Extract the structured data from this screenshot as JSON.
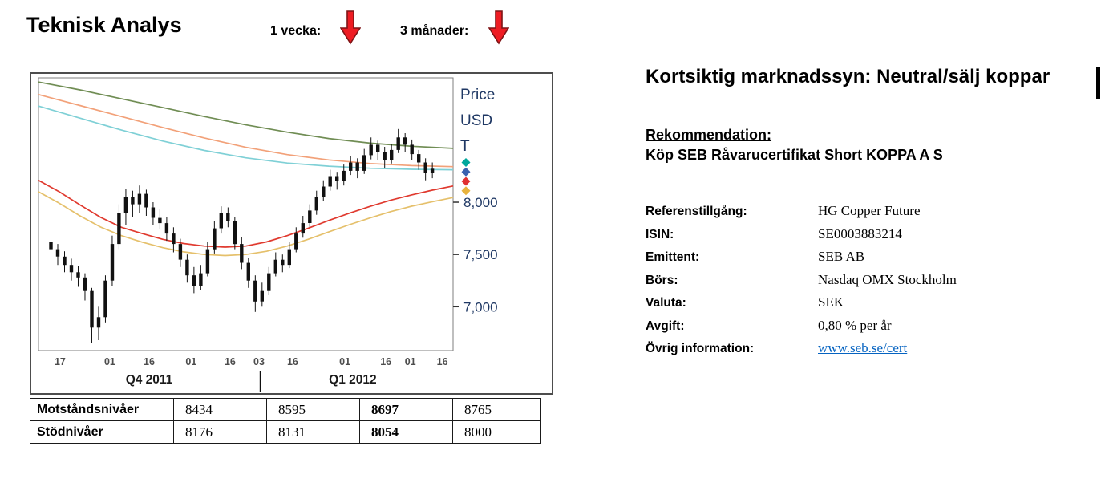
{
  "header": {
    "title": "Teknisk Analys",
    "week_label": "1 vecka:",
    "months_label": "3 månader:",
    "week_trend": "down",
    "months_trend": "down",
    "arrow_color": "#ee1c23",
    "arrow_outline": "#7f1416"
  },
  "chart_data": {
    "type": "candlestick",
    "title": "",
    "price_axis_label_lines": [
      "Price",
      "USD",
      "T"
    ],
    "y_range": [
      6580,
      9190
    ],
    "y_ticks": [
      {
        "label": "8,000",
        "value": 8000
      },
      {
        "label": "7,500",
        "value": 7500
      },
      {
        "label": "7,000",
        "value": 7000
      }
    ],
    "x_ticks": [
      {
        "label": "17",
        "pos": 5.2
      },
      {
        "label": "01",
        "pos": 17.2
      },
      {
        "label": "16",
        "pos": 26.7
      },
      {
        "label": "01",
        "pos": 36.8
      },
      {
        "label": "16",
        "pos": 46.2
      },
      {
        "label": "03",
        "pos": 53.2
      },
      {
        "label": "16",
        "pos": 61.3
      },
      {
        "label": "01",
        "pos": 73.9
      },
      {
        "label": "16",
        "pos": 83.8
      },
      {
        "label": "01",
        "pos": 89.7
      },
      {
        "label": "16",
        "pos": 97.4
      }
    ],
    "period_labels": [
      {
        "label": "Q4 2011",
        "pos": 26.7
      },
      {
        "label": "Q1 2012",
        "pos": 75.8
      }
    ],
    "divider_pos": 53.5,
    "candle_color": "#111111",
    "candles": [
      [
        7620,
        7680,
        7480,
        7550
      ],
      [
        7550,
        7600,
        7400,
        7480
      ],
      [
        7480,
        7530,
        7330,
        7400
      ],
      [
        7400,
        7460,
        7250,
        7330
      ],
      [
        7330,
        7390,
        7190,
        7280
      ],
      [
        7280,
        7320,
        7060,
        7150
      ],
      [
        7150,
        7180,
        6650,
        6800
      ],
      [
        6800,
        7000,
        6680,
        6900
      ],
      [
        6900,
        7300,
        6850,
        7250
      ],
      [
        7250,
        7680,
        7200,
        7600
      ],
      [
        7600,
        7980,
        7550,
        7900
      ],
      [
        7900,
        8130,
        7780,
        8050
      ],
      [
        8050,
        8110,
        7860,
        7980
      ],
      [
        7980,
        8160,
        7900,
        8080
      ],
      [
        8080,
        8120,
        7870,
        7950
      ],
      [
        7950,
        8000,
        7780,
        7850
      ],
      [
        7850,
        7930,
        7740,
        7800
      ],
      [
        7800,
        7860,
        7630,
        7700
      ],
      [
        7700,
        7760,
        7520,
        7600
      ],
      [
        7600,
        7650,
        7380,
        7450
      ],
      [
        7450,
        7500,
        7230,
        7300
      ],
      [
        7300,
        7380,
        7130,
        7200
      ],
      [
        7200,
        7400,
        7160,
        7320
      ],
      [
        7320,
        7620,
        7290,
        7550
      ],
      [
        7550,
        7820,
        7510,
        7750
      ],
      [
        7750,
        7960,
        7700,
        7900
      ],
      [
        7900,
        7950,
        7760,
        7820
      ],
      [
        7820,
        7860,
        7550,
        7600
      ],
      [
        7600,
        7670,
        7360,
        7420
      ],
      [
        7420,
        7470,
        7180,
        7250
      ],
      [
        7250,
        7300,
        6950,
        7050
      ],
      [
        7050,
        7230,
        7000,
        7150
      ],
      [
        7150,
        7380,
        7110,
        7320
      ],
      [
        7320,
        7520,
        7290,
        7450
      ],
      [
        7450,
        7500,
        7330,
        7400
      ],
      [
        7400,
        7620,
        7370,
        7550
      ],
      [
        7550,
        7760,
        7520,
        7700
      ],
      [
        7700,
        7870,
        7660,
        7800
      ],
      [
        7800,
        7980,
        7760,
        7920
      ],
      [
        7920,
        8110,
        7880,
        8050
      ],
      [
        8050,
        8210,
        8010,
        8150
      ],
      [
        8150,
        8310,
        8110,
        8250
      ],
      [
        8250,
        8290,
        8120,
        8200
      ],
      [
        8200,
        8360,
        8160,
        8300
      ],
      [
        8300,
        8440,
        8260,
        8380
      ],
      [
        8380,
        8420,
        8230,
        8300
      ],
      [
        8300,
        8510,
        8270,
        8450
      ],
      [
        8450,
        8620,
        8410,
        8550
      ],
      [
        8550,
        8590,
        8400,
        8480
      ],
      [
        8480,
        8530,
        8330,
        8400
      ],
      [
        8400,
        8560,
        8370,
        8500
      ],
      [
        8500,
        8700,
        8470,
        8620
      ],
      [
        8620,
        8660,
        8480,
        8550
      ],
      [
        8550,
        8600,
        8400,
        8460
      ],
      [
        8460,
        8500,
        8310,
        8380
      ],
      [
        8380,
        8420,
        8210,
        8280
      ],
      [
        8280,
        8380,
        8230,
        8320
      ]
    ],
    "ma_lines": [
      {
        "name": "long-green",
        "color": "#708d54",
        "points": [
          [
            0,
            9150
          ],
          [
            10,
            9075
          ],
          [
            20,
            8990
          ],
          [
            30,
            8905
          ],
          [
            40,
            8820
          ],
          [
            50,
            8740
          ],
          [
            60,
            8670
          ],
          [
            70,
            8610
          ],
          [
            80,
            8565
          ],
          [
            90,
            8535
          ],
          [
            100,
            8515
          ]
        ]
      },
      {
        "name": "salmon",
        "color": "#f2a179",
        "points": [
          [
            0,
            9030
          ],
          [
            10,
            8925
          ],
          [
            20,
            8820
          ],
          [
            30,
            8715
          ],
          [
            40,
            8615
          ],
          [
            50,
            8525
          ],
          [
            60,
            8455
          ],
          [
            70,
            8405
          ],
          [
            80,
            8370
          ],
          [
            90,
            8350
          ],
          [
            100,
            8340
          ]
        ]
      },
      {
        "name": "cyan",
        "color": "#7fd0d6",
        "points": [
          [
            0,
            8920
          ],
          [
            10,
            8805
          ],
          [
            20,
            8690
          ],
          [
            30,
            8585
          ],
          [
            40,
            8495
          ],
          [
            50,
            8425
          ],
          [
            60,
            8375
          ],
          [
            70,
            8345
          ],
          [
            80,
            8325
          ],
          [
            90,
            8315
          ],
          [
            100,
            8310
          ]
        ]
      },
      {
        "name": "yellow",
        "color": "#e5c06b",
        "points": [
          [
            0,
            8100
          ],
          [
            5,
            7990
          ],
          [
            10,
            7870
          ],
          [
            15,
            7762
          ],
          [
            20,
            7680
          ],
          [
            25,
            7618
          ],
          [
            30,
            7565
          ],
          [
            35,
            7525
          ],
          [
            40,
            7500
          ],
          [
            45,
            7490
          ],
          [
            50,
            7500
          ],
          [
            55,
            7530
          ],
          [
            60,
            7580
          ],
          [
            65,
            7645
          ],
          [
            70,
            7715
          ],
          [
            75,
            7785
          ],
          [
            80,
            7850
          ],
          [
            85,
            7910
          ],
          [
            90,
            7962
          ],
          [
            95,
            8005
          ],
          [
            100,
            8045
          ]
        ]
      },
      {
        "name": "red",
        "color": "#e03a2f",
        "points": [
          [
            0,
            8210
          ],
          [
            5,
            8100
          ],
          [
            10,
            7975
          ],
          [
            15,
            7855
          ],
          [
            20,
            7760
          ],
          [
            25,
            7700
          ],
          [
            30,
            7645
          ],
          [
            35,
            7605
          ],
          [
            40,
            7580
          ],
          [
            45,
            7570
          ],
          [
            50,
            7580
          ],
          [
            55,
            7620
          ],
          [
            60,
            7680
          ],
          [
            65,
            7750
          ],
          [
            70,
            7825
          ],
          [
            75,
            7895
          ],
          [
            80,
            7960
          ],
          [
            85,
            8020
          ],
          [
            90,
            8070
          ],
          [
            95,
            8115
          ],
          [
            100,
            8155
          ]
        ]
      }
    ],
    "markers": [
      {
        "color": "#00a79d",
        "value": 8380
      },
      {
        "color": "#3a62b0",
        "value": 8290
      },
      {
        "color": "#e03131",
        "value": 8200
      },
      {
        "color": "#e8b33d",
        "value": 8110
      }
    ],
    "axis_text_color": "#1F3864"
  },
  "levels_table": {
    "rows": [
      {
        "label": "Motståndsnivåer",
        "values": [
          "8434",
          "8595",
          "8697",
          "8765"
        ],
        "bold_value_index": 2
      },
      {
        "label": "Stödnivåer",
        "values": [
          "8176",
          "8131",
          "8054",
          "8000"
        ],
        "bold_value_index": 2
      }
    ]
  },
  "analysis": {
    "heading": "Kortsiktig marknadssyn: Neutral/sälj koppar",
    "recommendation_label": "Rekommendation:",
    "recommendation_text": "Köp SEB Råvarucertifikat Short KOPPA A S",
    "link_color": "#0563C1",
    "info": [
      {
        "label": "Referenstillgång:",
        "value": "HG Copper Future"
      },
      {
        "label": "ISIN:",
        "value": "SE0003883214"
      },
      {
        "label": "Emittent:",
        "value": "SEB AB"
      },
      {
        "label": "Börs:",
        "value": "Nasdaq OMX Stockholm"
      },
      {
        "label": "Valuta:",
        "value": "SEK"
      },
      {
        "label": "Avgift:",
        "value": "0,80 % per år"
      },
      {
        "label": "Övrig information:",
        "value": "www.seb.se/cert"
      }
    ]
  }
}
